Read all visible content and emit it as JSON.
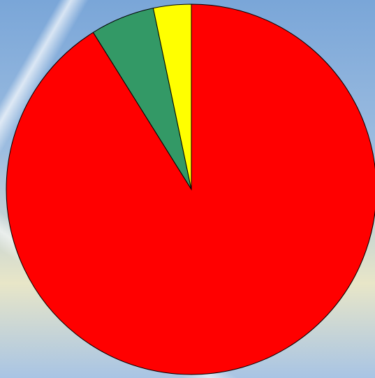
{
  "chart_data": {
    "type": "pie",
    "categories": [
      null,
      null,
      null
    ],
    "values": [
      91.1,
      5.6,
      3.3
    ],
    "colors": [
      "#ff0000",
      "#339966",
      "#ffff00"
    ]
  }
}
